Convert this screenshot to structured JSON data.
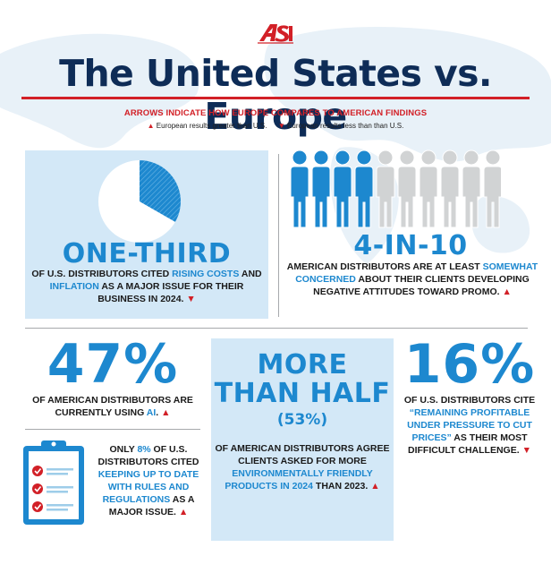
{
  "logo": {
    "text": "ASI",
    "color": "#d22027"
  },
  "title": "The United States vs. Europe",
  "subtitle": "ARROWS INDICATE HOW EUROPE COMPARES TO AMERICAN FINDINGS",
  "legend": {
    "up_symbol": "▲",
    "up_text": "European results greater than U.S.",
    "down_symbol": "▼",
    "down_text": "European results less than than U.S."
  },
  "colors": {
    "navy": "#0e2c57",
    "blue": "#1d88cf",
    "red": "#d22027",
    "light_blue": "#d3e8f7",
    "grey_person": "#d1d3d4"
  },
  "stats": {
    "one_third": {
      "headline": "ONE-THIRD",
      "pie_fraction": 0.333,
      "t1": "OF U.S. DISTRIBUTORS CITED ",
      "h1": "RISING COSTS",
      "t2": " AND ",
      "h2": "INFLATION",
      "t3": " AS A MAJOR ISSUE FOR THEIR BUSINESS IN 2024.",
      "arrow": "▼"
    },
    "four_in_ten": {
      "headline": "4-IN-10",
      "people_total": 10,
      "people_highlighted": 4,
      "t1": "AMERICAN DISTRIBUTORS ARE AT LEAST ",
      "h1": "SOMEWHAT CONCERNED",
      "t2": " ABOUT THEIR CLIENTS DEVELOPING NEGATIVE ATTITUDES TOWARD PROMO.",
      "arrow": "▲"
    },
    "ai": {
      "headline": "47%",
      "t1": "OF AMERICAN DISTRIBUTORS ARE CURRENTLY USING ",
      "h1": "AI",
      "t2": ".",
      "arrow": "▲"
    },
    "regulations": {
      "t1": "ONLY ",
      "h1": "8%",
      "t2": " OF U.S. DISTRIBUTORS CITED ",
      "h2": "KEEPING UP TO DATE WITH RULES AND REGULATIONS",
      "t3": " AS A MAJOR ISSUE.",
      "arrow": "▲"
    },
    "eco": {
      "headline": "MORE THAN HALF",
      "pct": "(53%)",
      "t1": "OF AMERICAN DISTRIBUTORS AGREE CLIENTS ASKED FOR MORE ",
      "h1": "ENVIRONMENTALLY FRIENDLY PRODUCTS IN 2024",
      "t2": " THAN 2023.",
      "arrow": "▲"
    },
    "profit": {
      "headline": "16%",
      "t1": "OF U.S. DISTRIBUTORS CITE ",
      "h1": "“REMAINING PROFITABLE UNDER PRESSURE TO CUT PRICES”",
      "t2": " AS THEIR MOST DIFFICULT CHALLENGE.",
      "arrow": "▼"
    }
  }
}
